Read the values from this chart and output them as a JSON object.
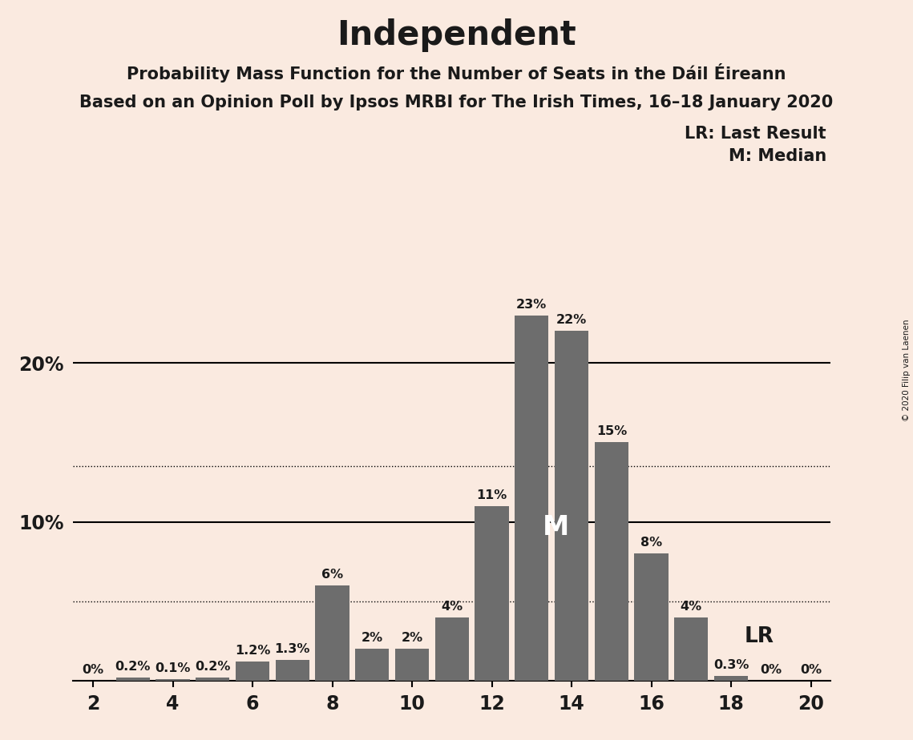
{
  "title": "Independent",
  "subtitle1": "Probability Mass Function for the Number of Seats in the Dáil Éireann",
  "subtitle2": "Based on an Opinion Poll by Ipsos MRBI for The Irish Times, 16–18 January 2020",
  "copyright": "© 2020 Filip van Laenen",
  "background_color": "#faeae0",
  "bar_color": "#6d6d6d",
  "categories": [
    2,
    3,
    4,
    5,
    6,
    7,
    8,
    9,
    10,
    11,
    12,
    13,
    14,
    15,
    16,
    17,
    18,
    19,
    20
  ],
  "values": [
    0.0,
    0.2,
    0.1,
    0.2,
    1.2,
    1.3,
    6.0,
    2.0,
    2.0,
    4.0,
    11.0,
    23.0,
    22.0,
    15.0,
    8.0,
    4.0,
    0.3,
    0.0,
    0.0
  ],
  "labels": [
    "0%",
    "0.2%",
    "0.1%",
    "0.2%",
    "1.2%",
    "1.3%",
    "6%",
    "2%",
    "2%",
    "4%",
    "11%",
    "23%",
    "22%",
    "15%",
    "8%",
    "4%",
    "0.3%",
    "0%",
    "0%"
  ],
  "median_bar_x": 13,
  "lr_label": "LR",
  "legend_lr": "LR: Last Result",
  "legend_m": "M: Median",
  "dotted_lines": [
    5.0,
    13.5
  ],
  "solid_lines": [
    10.0,
    20.0
  ],
  "xlim": [
    1.5,
    20.5
  ],
  "ylim": [
    0,
    27
  ],
  "xticks": [
    2,
    4,
    6,
    8,
    10,
    12,
    14,
    16,
    18,
    20
  ],
  "title_fontsize": 30,
  "subtitle_fontsize": 15,
  "bar_label_fontsize": 11.5,
  "axis_fontsize": 17,
  "legend_fontsize": 15
}
